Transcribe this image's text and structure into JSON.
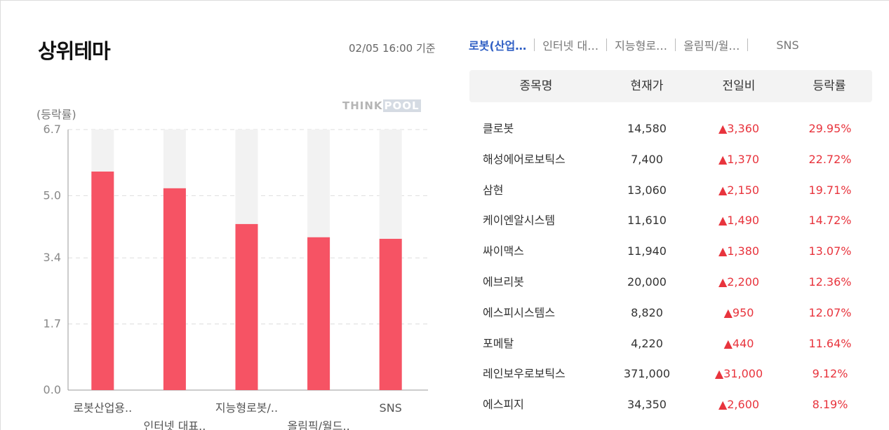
{
  "header": {
    "title": "상위테마",
    "timestamp": "02/05 16:00 기준"
  },
  "tabs": [
    {
      "label": "로봇(산업…",
      "active": true
    },
    {
      "label": "인터넷 대…",
      "active": false
    },
    {
      "label": "지능형로…",
      "active": false
    },
    {
      "label": "올림픽/월…",
      "active": false
    },
    {
      "label": "SNS",
      "active": false
    }
  ],
  "logo": {
    "part1": "THINK",
    "part2": "POOL"
  },
  "chart_data": {
    "type": "bar",
    "ylabel": "(등락률)",
    "ylim": [
      0,
      6.7
    ],
    "yticks": [
      "0.0",
      "1.7",
      "3.4",
      "5.0",
      "6.7"
    ],
    "categories": [
      "로봇산업용..",
      "인터넷 대표..",
      "지능형로봇/..",
      "올림픽/월드..",
      "SNS"
    ],
    "values": [
      5.62,
      5.19,
      4.27,
      3.93,
      3.89
    ],
    "colors": {
      "bar": "#f65364",
      "track": "#f2f2f2",
      "grid": "#dddddd",
      "axis": "#999999"
    }
  },
  "table": {
    "headers": {
      "name": "종목명",
      "price": "현재가",
      "change": "전일비",
      "rate": "등락률"
    },
    "rows": [
      {
        "name": "클로봇",
        "price": "14,580",
        "change": "▲3,360",
        "rate": "29.95%"
      },
      {
        "name": "해성에어로보틱스",
        "price": "7,400",
        "change": "▲1,370",
        "rate": "22.72%"
      },
      {
        "name": "삼현",
        "price": "13,060",
        "change": "▲2,150",
        "rate": "19.71%"
      },
      {
        "name": "케이엔알시스템",
        "price": "11,610",
        "change": "▲1,490",
        "rate": "14.72%"
      },
      {
        "name": "싸이맥스",
        "price": "11,940",
        "change": "▲1,380",
        "rate": "13.07%"
      },
      {
        "name": "에브리봇",
        "price": "20,000",
        "change": "▲2,200",
        "rate": "12.36%"
      },
      {
        "name": "에스피시스템스",
        "price": "8,820",
        "change": "▲950",
        "rate": "12.07%"
      },
      {
        "name": "포메탈",
        "price": "4,220",
        "change": "▲440",
        "rate": "11.64%"
      },
      {
        "name": "레인보우로보틱스",
        "price": "371,000",
        "change": "▲31,000",
        "rate": "9.12%"
      },
      {
        "name": "에스피지",
        "price": "34,350",
        "change": "▲2,600",
        "rate": "8.19%"
      }
    ]
  }
}
